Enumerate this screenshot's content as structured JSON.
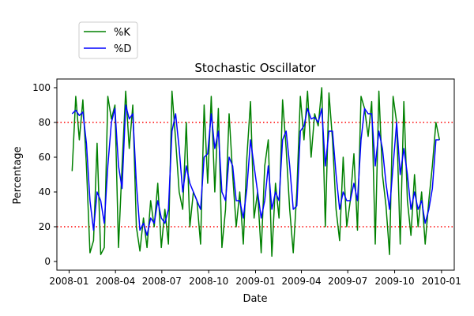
{
  "chart_data": {
    "type": "line",
    "title": "Stochastic Oscillator",
    "xlabel": "Date",
    "ylabel": "Percentage",
    "xlim": [
      "2007-12-08",
      "2010-01-26"
    ],
    "ylim": [
      -5,
      105
    ],
    "x_ticks": [
      "2008-01",
      "2008-04",
      "2008-07",
      "2008-10",
      "2009-01",
      "2009-04",
      "2009-07",
      "2009-10",
      "2010-01"
    ],
    "y_ticks": [
      0,
      20,
      40,
      60,
      80,
      100
    ],
    "reference_lines": [
      {
        "y": 80,
        "color": "#ff0000",
        "style": "dotted"
      },
      {
        "y": 20,
        "color": "#ff0000",
        "style": "dotted"
      }
    ],
    "legend_position": "upper-left, above axes",
    "grid": false,
    "x": [
      "2008-01-07",
      "2008-01-14",
      "2008-01-21",
      "2008-01-28",
      "2008-02-04",
      "2008-02-11",
      "2008-02-18",
      "2008-02-25",
      "2008-03-03",
      "2008-03-10",
      "2008-03-17",
      "2008-03-24",
      "2008-03-31",
      "2008-04-07",
      "2008-04-14",
      "2008-04-21",
      "2008-04-28",
      "2008-05-05",
      "2008-05-12",
      "2008-05-19",
      "2008-05-26",
      "2008-06-02",
      "2008-06-09",
      "2008-06-16",
      "2008-06-23",
      "2008-06-30",
      "2008-07-07",
      "2008-07-14",
      "2008-07-21",
      "2008-07-28",
      "2008-08-04",
      "2008-08-11",
      "2008-08-18",
      "2008-08-25",
      "2008-09-01",
      "2008-09-08",
      "2008-09-15",
      "2008-09-22",
      "2008-09-29",
      "2008-10-06",
      "2008-10-13",
      "2008-10-20",
      "2008-10-27",
      "2008-11-03",
      "2008-11-10",
      "2008-11-17",
      "2008-11-24",
      "2008-12-01",
      "2008-12-08",
      "2008-12-15",
      "2008-12-22",
      "2008-12-29",
      "2009-01-05",
      "2009-01-12",
      "2009-01-19",
      "2009-01-26",
      "2009-02-02",
      "2009-02-09",
      "2009-02-16",
      "2009-02-23",
      "2009-03-02",
      "2009-03-09",
      "2009-03-16",
      "2009-03-23",
      "2009-03-30",
      "2009-04-06",
      "2009-04-13",
      "2009-04-20",
      "2009-04-27",
      "2009-05-04",
      "2009-05-11",
      "2009-05-18",
      "2009-05-25",
      "2009-06-01",
      "2009-06-08",
      "2009-06-15",
      "2009-06-22",
      "2009-06-29",
      "2009-07-06",
      "2009-07-13",
      "2009-07-20",
      "2009-07-27",
      "2009-08-03",
      "2009-08-10",
      "2009-08-17",
      "2009-08-24",
      "2009-08-31",
      "2009-09-07",
      "2009-09-14",
      "2009-09-21",
      "2009-09-28",
      "2009-10-05",
      "2009-10-12",
      "2009-10-19",
      "2009-10-26",
      "2009-11-02",
      "2009-11-09",
      "2009-11-16",
      "2009-11-23",
      "2009-11-30",
      "2009-12-07",
      "2009-12-14",
      "2009-12-21",
      "2009-12-28"
    ],
    "series": [
      {
        "name": "%K",
        "color": "#008000",
        "values": [
          52,
          95,
          70,
          93,
          55,
          5,
          12,
          68,
          4,
          8,
          95,
          82,
          90,
          8,
          55,
          98,
          65,
          90,
          20,
          6,
          25,
          8,
          35,
          20,
          45,
          8,
          30,
          10,
          98,
          70,
          40,
          30,
          80,
          20,
          40,
          35,
          10,
          90,
          45,
          95,
          40,
          88,
          8,
          30,
          85,
          50,
          20,
          40,
          10,
          60,
          92,
          25,
          40,
          5,
          55,
          70,
          3,
          45,
          25,
          93,
          65,
          30,
          5,
          40,
          95,
          70,
          98,
          60,
          85,
          78,
          100,
          20,
          97,
          70,
          30,
          12,
          60,
          20,
          35,
          62,
          18,
          95,
          88,
          72,
          92,
          10,
          98,
          50,
          32,
          4,
          95,
          80,
          10,
          92,
          35,
          15,
          50,
          20,
          40,
          10,
          35,
          55,
          80,
          70
        ],
        "labels_shown": false
      },
      {
        "name": "%D",
        "color": "#0000ff",
        "values": [
          85,
          87,
          84,
          86,
          68,
          35,
          18,
          40,
          35,
          22,
          55,
          80,
          88,
          55,
          42,
          90,
          82,
          85,
          45,
          18,
          22,
          15,
          25,
          22,
          35,
          25,
          22,
          30,
          75,
          85,
          65,
          40,
          55,
          45,
          40,
          35,
          30,
          60,
          62,
          85,
          65,
          75,
          40,
          35,
          60,
          55,
          35,
          35,
          25,
          42,
          70,
          55,
          40,
          25,
          35,
          55,
          30,
          40,
          35,
          70,
          75,
          55,
          30,
          32,
          75,
          78,
          88,
          82,
          83,
          80,
          88,
          55,
          75,
          75,
          50,
          30,
          40,
          35,
          35,
          45,
          35,
          70,
          88,
          85,
          85,
          55,
          75,
          65,
          45,
          30,
          55,
          80,
          50,
          65,
          50,
          30,
          40,
          30,
          35,
          22,
          30,
          42,
          70,
          70
        ],
        "labels_shown": false
      }
    ],
    "legend": [
      {
        "label": "%K",
        "color": "#008000"
      },
      {
        "label": "%D",
        "color": "#0000ff"
      }
    ]
  }
}
